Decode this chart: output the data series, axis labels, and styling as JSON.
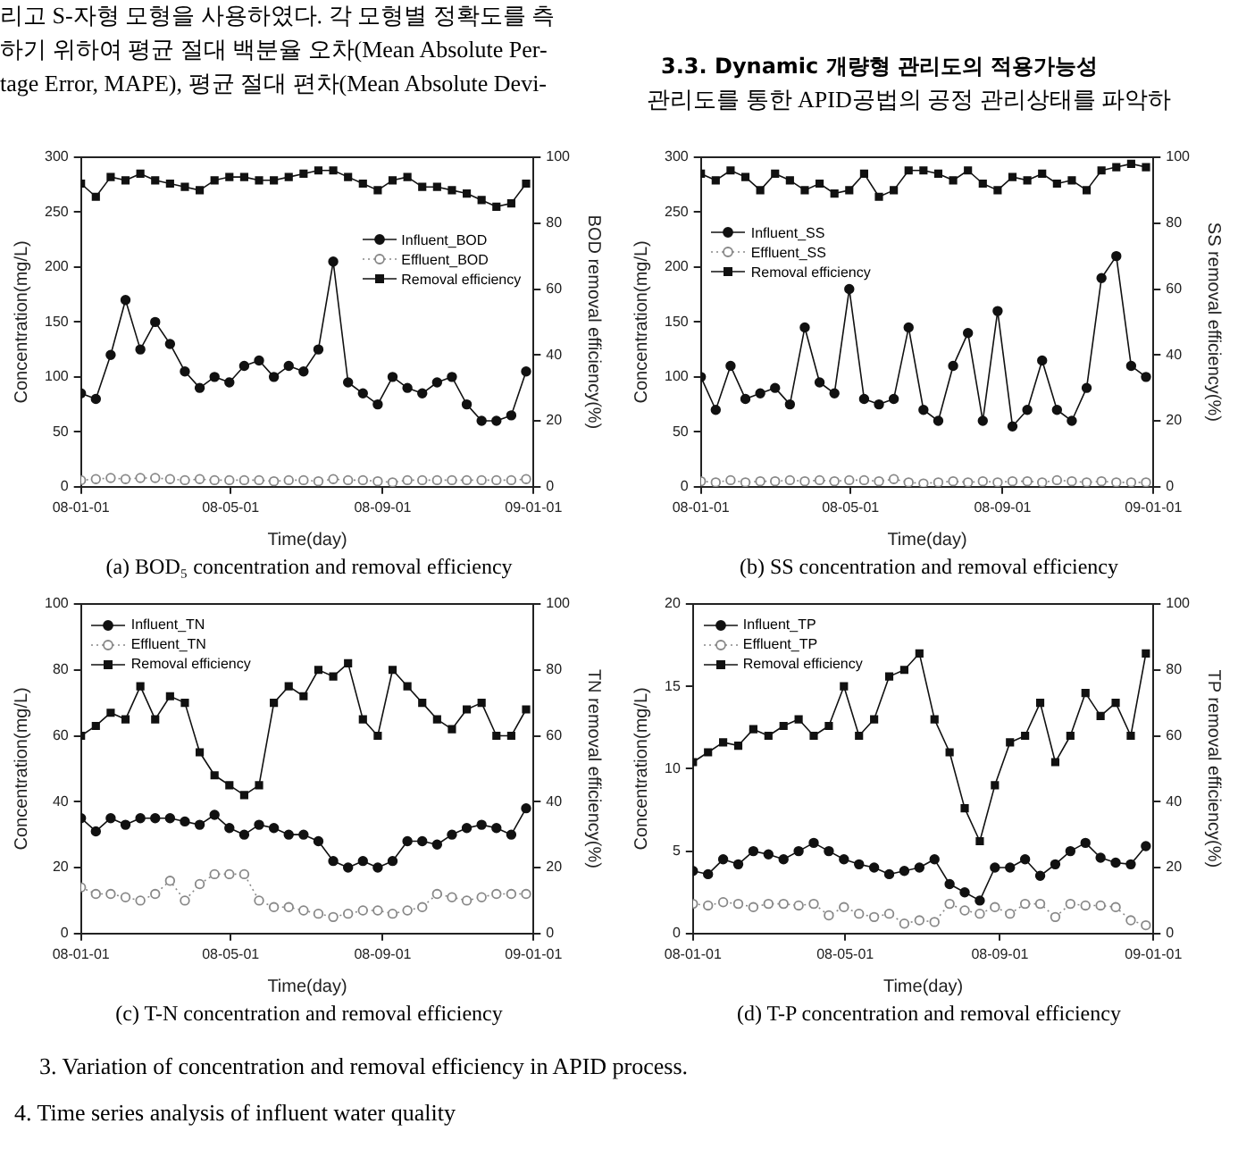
{
  "chart_data": [
    {
      "type": "line",
      "title": "(a) BOD₅ concentration and removal efficiency",
      "xlabel": "Time(day)",
      "ylabel": "Concentration(mg/L)",
      "y2label": "BOD removal efficiency(%)",
      "annotations": [
        "리고 S-자형 모형을 사용하였다. 각 모형별 정확도를 측",
        "하기 위하여 평균 절대 백분율 오차(Mean Absolute Per-",
        "tage Error, MAPE), 평균 절대 편차(Mean Absolute Devi-"
      ],
      "x": [
        "2008-01-01",
        "2008-01-13",
        "2008-01-25",
        "2008-02-06",
        "2008-02-18",
        "2008-03-01",
        "2008-03-13",
        "2008-03-25",
        "2008-04-06",
        "2008-04-18",
        "2008-04-30",
        "2008-05-12",
        "2008-05-24",
        "2008-06-05",
        "2008-06-17",
        "2008-06-29",
        "2008-07-11",
        "2008-07-23",
        "2008-08-04",
        "2008-08-16",
        "2008-08-28",
        "2008-09-09",
        "2008-09-21",
        "2008-10-03",
        "2008-10-15",
        "2008-10-27",
        "2008-11-08",
        "2008-11-20",
        "2008-12-02",
        "2008-12-14",
        "2008-12-26"
      ],
      "xlim": [
        "2008-01-01",
        "2009-01-01"
      ],
      "xticks": [
        {
          "value": "2008-01-01",
          "label": "08-01-01"
        },
        {
          "value": "2008-05-01",
          "label": "08-05-01"
        },
        {
          "value": "2008-09-01",
          "label": "08-09-01"
        },
        {
          "value": "2009-01-01",
          "label": "09-01-01"
        }
      ],
      "ylim": [
        0,
        300
      ],
      "yticks": [
        0,
        50,
        100,
        150,
        200,
        250,
        300
      ],
      "y2lim": [
        0,
        100
      ],
      "y2ticks": [
        0,
        20,
        40,
        60,
        80,
        100
      ],
      "grid": false,
      "legend": "right",
      "series": [
        {
          "name": "Influent_BOD",
          "color": "#111111",
          "marker": "circle",
          "values": [
            85,
            80,
            120,
            170,
            125,
            150,
            130,
            105,
            90,
            100,
            95,
            110,
            115,
            100,
            110,
            105,
            125,
            205,
            95,
            85,
            75,
            100,
            90,
            85,
            95,
            100,
            75,
            60,
            60,
            65,
            105
          ]
        },
        {
          "name": "Effluent_BOD",
          "color": "#888888",
          "marker": "circle",
          "line_style": "dotted",
          "values": [
            6,
            7,
            8,
            7,
            8,
            8,
            7,
            6,
            7,
            6,
            6,
            6,
            6,
            5,
            6,
            6,
            5,
            7,
            6,
            6,
            5,
            4,
            6,
            6,
            6,
            6,
            6,
            6,
            6,
            6,
            7
          ]
        },
        {
          "name": "Removal efficiency",
          "color": "#111111",
          "marker": "square",
          "axis": "y2",
          "values": [
            92,
            88,
            94,
            93,
            95,
            93,
            92,
            91,
            90,
            93,
            94,
            94,
            93,
            93,
            94,
            95,
            96,
            96,
            94,
            92,
            90,
            93,
            94,
            91,
            91,
            90,
            89,
            87,
            85,
            86,
            92
          ]
        }
      ]
    },
    {
      "type": "line",
      "title": "(b) SS concentration and removal efficiency",
      "xlabel": "Time(day)",
      "ylabel": "Concentration(mg/L)",
      "y2label": "SS removal efficiency(%)",
      "annotations": [
        "3.3. Dynamic 개량형 관리도의 적용가능성",
        "관리도를 통한 APID공법의 공정 관리상태를 파악하"
      ],
      "x": [
        "2008-01-01",
        "2008-01-13",
        "2008-01-25",
        "2008-02-06",
        "2008-02-18",
        "2008-03-01",
        "2008-03-13",
        "2008-03-25",
        "2008-04-06",
        "2008-04-18",
        "2008-04-30",
        "2008-05-12",
        "2008-05-24",
        "2008-06-05",
        "2008-06-17",
        "2008-06-29",
        "2008-07-11",
        "2008-07-23",
        "2008-08-04",
        "2008-08-16",
        "2008-08-28",
        "2008-09-09",
        "2008-09-21",
        "2008-10-03",
        "2008-10-15",
        "2008-10-27",
        "2008-11-08",
        "2008-11-20",
        "2008-12-02",
        "2008-12-14",
        "2008-12-26"
      ],
      "xlim": [
        "2008-01-01",
        "2009-01-01"
      ],
      "xticks": [
        {
          "value": "2008-01-01",
          "label": "08-01-01"
        },
        {
          "value": "2008-05-01",
          "label": "08-05-01"
        },
        {
          "value": "2008-09-01",
          "label": "08-09-01"
        },
        {
          "value": "2009-01-01",
          "label": "09-01-01"
        }
      ],
      "ylim": [
        0,
        300
      ],
      "yticks": [
        0,
        50,
        100,
        150,
        200,
        250,
        300
      ],
      "y2lim": [
        0,
        100
      ],
      "y2ticks": [
        0,
        20,
        40,
        60,
        80,
        100
      ],
      "grid": false,
      "legend": "top left",
      "series": [
        {
          "name": "Influent_SS",
          "color": "#111111",
          "marker": "circle",
          "values": [
            100,
            70,
            110,
            80,
            85,
            90,
            75,
            145,
            95,
            85,
            180,
            80,
            75,
            80,
            145,
            70,
            60,
            110,
            140,
            60,
            160,
            55,
            70,
            115,
            70,
            60,
            90,
            190,
            210,
            110,
            100
          ]
        },
        {
          "name": "Effluent_SS",
          "color": "#888888",
          "marker": "circle",
          "line_style": "dotted",
          "values": [
            5,
            4,
            6,
            4,
            5,
            5,
            6,
            5,
            6,
            5,
            6,
            6,
            5,
            7,
            4,
            3,
            4,
            5,
            4,
            5,
            4,
            5,
            5,
            4,
            6,
            5,
            4,
            5,
            4,
            4,
            4
          ]
        },
        {
          "name": "Removal efficiency",
          "color": "#111111",
          "marker": "square",
          "axis": "y2",
          "values": [
            95,
            93,
            96,
            94,
            90,
            95,
            93,
            90,
            92,
            89,
            90,
            95,
            88,
            90,
            96,
            96,
            95,
            93,
            96,
            92,
            90,
            94,
            93,
            95,
            92,
            93,
            90,
            96,
            97,
            98,
            97
          ]
        }
      ]
    },
    {
      "type": "line",
      "title": "(c) T-N concentration and removal efficiency",
      "xlabel": "Time(day)",
      "ylabel": "Concentration(mg/L)",
      "y2label": "TN removal efficiency(%)",
      "annotations": [
        "3. Variation of concentration and removal efficiency in APID process.",
        "4. Time series analysis of influent water quality"
      ],
      "x": [
        "2008-01-01",
        "2008-01-13",
        "2008-01-25",
        "2008-02-06",
        "2008-02-18",
        "2008-03-01",
        "2008-03-13",
        "2008-03-25",
        "2008-04-06",
        "2008-04-18",
        "2008-04-30",
        "2008-05-12",
        "2008-05-24",
        "2008-06-05",
        "2008-06-17",
        "2008-06-29",
        "2008-07-11",
        "2008-07-23",
        "2008-08-04",
        "2008-08-16",
        "2008-08-28",
        "2008-09-09",
        "2008-09-21",
        "2008-10-03",
        "2008-10-15",
        "2008-10-27",
        "2008-11-08",
        "2008-11-20",
        "2008-12-02",
        "2008-12-14",
        "2008-12-26"
      ],
      "xlim": [
        "2008-01-01",
        "2009-01-01"
      ],
      "xticks": [
        {
          "value": "2008-01-01",
          "label": "08-01-01"
        },
        {
          "value": "2008-05-01",
          "label": "08-05-01"
        },
        {
          "value": "2008-09-01",
          "label": "08-09-01"
        },
        {
          "value": "2009-01-01",
          "label": "09-01-01"
        }
      ],
      "ylim": [
        0,
        100
      ],
      "yticks": [
        0,
        20,
        40,
        60,
        80,
        100
      ],
      "y2lim": [
        0,
        100
      ],
      "y2ticks": [
        0,
        20,
        40,
        60,
        80,
        100
      ],
      "grid": false,
      "legend": "top left",
      "series": [
        {
          "name": "Influent_TN",
          "color": "#111111",
          "marker": "circle",
          "values": [
            35,
            31,
            35,
            33,
            35,
            35,
            35,
            34,
            33,
            36,
            32,
            30,
            33,
            32,
            30,
            30,
            28,
            22,
            20,
            22,
            20,
            22,
            28,
            28,
            27,
            30,
            32,
            33,
            32,
            30,
            38
          ]
        },
        {
          "name": "Effluent_TN",
          "color": "#888888",
          "marker": "circle",
          "line_style": "dotted",
          "values": [
            14,
            12,
            12,
            11,
            10,
            12,
            16,
            10,
            15,
            18,
            18,
            18,
            10,
            8,
            8,
            7,
            6,
            5,
            6,
            7,
            7,
            6,
            7,
            8,
            12,
            11,
            10,
            11,
            12,
            12,
            12
          ]
        },
        {
          "name": "Removal efficiency",
          "color": "#111111",
          "marker": "square",
          "axis": "y2",
          "values": [
            60,
            63,
            67,
            65,
            75,
            65,
            72,
            70,
            55,
            48,
            45,
            42,
            45,
            70,
            75,
            72,
            80,
            78,
            82,
            65,
            60,
            80,
            75,
            70,
            65,
            62,
            68,
            70,
            60,
            60,
            68
          ]
        }
      ]
    },
    {
      "type": "line",
      "title": "(d) T-P concentration and removal efficiency",
      "xlabel": "Time(day)",
      "ylabel": "Concentration(mg/L)",
      "y2label": "TP removal efficiency(%)",
      "x": [
        "2008-01-01",
        "2008-01-13",
        "2008-01-25",
        "2008-02-06",
        "2008-02-18",
        "2008-03-01",
        "2008-03-13",
        "2008-03-25",
        "2008-04-06",
        "2008-04-18",
        "2008-04-30",
        "2008-05-12",
        "2008-05-24",
        "2008-06-05",
        "2008-06-17",
        "2008-06-29",
        "2008-07-11",
        "2008-07-23",
        "2008-08-04",
        "2008-08-16",
        "2008-08-28",
        "2008-09-09",
        "2008-09-21",
        "2008-10-03",
        "2008-10-15",
        "2008-10-27",
        "2008-11-08",
        "2008-11-20",
        "2008-12-02",
        "2008-12-14",
        "2008-12-26"
      ],
      "xlim": [
        "2008-01-01",
        "2009-01-01"
      ],
      "xticks": [
        {
          "value": "2008-01-01",
          "label": "08-01-01"
        },
        {
          "value": "2008-05-01",
          "label": "08-05-01"
        },
        {
          "value": "2008-09-01",
          "label": "08-09-01"
        },
        {
          "value": "2009-01-01",
          "label": "09-01-01"
        }
      ],
      "ylim": [
        0,
        20
      ],
      "yticks": [
        0,
        5,
        10,
        15,
        20
      ],
      "y2lim": [
        0,
        100
      ],
      "y2ticks": [
        0,
        20,
        40,
        60,
        80,
        100
      ],
      "grid": false,
      "legend": "top left",
      "series": [
        {
          "name": "Influent_TP",
          "color": "#111111",
          "marker": "circle",
          "values": [
            3.8,
            3.6,
            4.5,
            4.2,
            5,
            4.8,
            4.5,
            5,
            5.5,
            5,
            4.5,
            4.2,
            4,
            3.6,
            3.8,
            4,
            4.5,
            3,
            2.5,
            2,
            4,
            4,
            4.5,
            3.5,
            4.2,
            5,
            5.5,
            4.6,
            4.3,
            4.2,
            5.3
          ]
        },
        {
          "name": "Effluent_TP",
          "color": "#888888",
          "marker": "circle",
          "line_style": "dotted",
          "values": [
            1.8,
            1.7,
            1.9,
            1.8,
            1.6,
            1.8,
            1.8,
            1.7,
            1.8,
            1.1,
            1.6,
            1.2,
            1,
            1.2,
            0.6,
            0.8,
            0.7,
            1.8,
            1.4,
            1.2,
            1.6,
            1.2,
            1.8,
            1.8,
            1,
            1.8,
            1.7,
            1.7,
            1.6,
            0.8,
            0.5
          ]
        },
        {
          "name": "Removal efficiency",
          "color": "#111111",
          "marker": "square",
          "axis": "y2",
          "values": [
            52,
            55,
            58,
            57,
            62,
            60,
            63,
            65,
            60,
            63,
            75,
            60,
            65,
            78,
            80,
            85,
            65,
            55,
            38,
            28,
            45,
            58,
            60,
            70,
            52,
            60,
            73,
            66,
            70,
            60,
            85
          ]
        }
      ]
    }
  ]
}
